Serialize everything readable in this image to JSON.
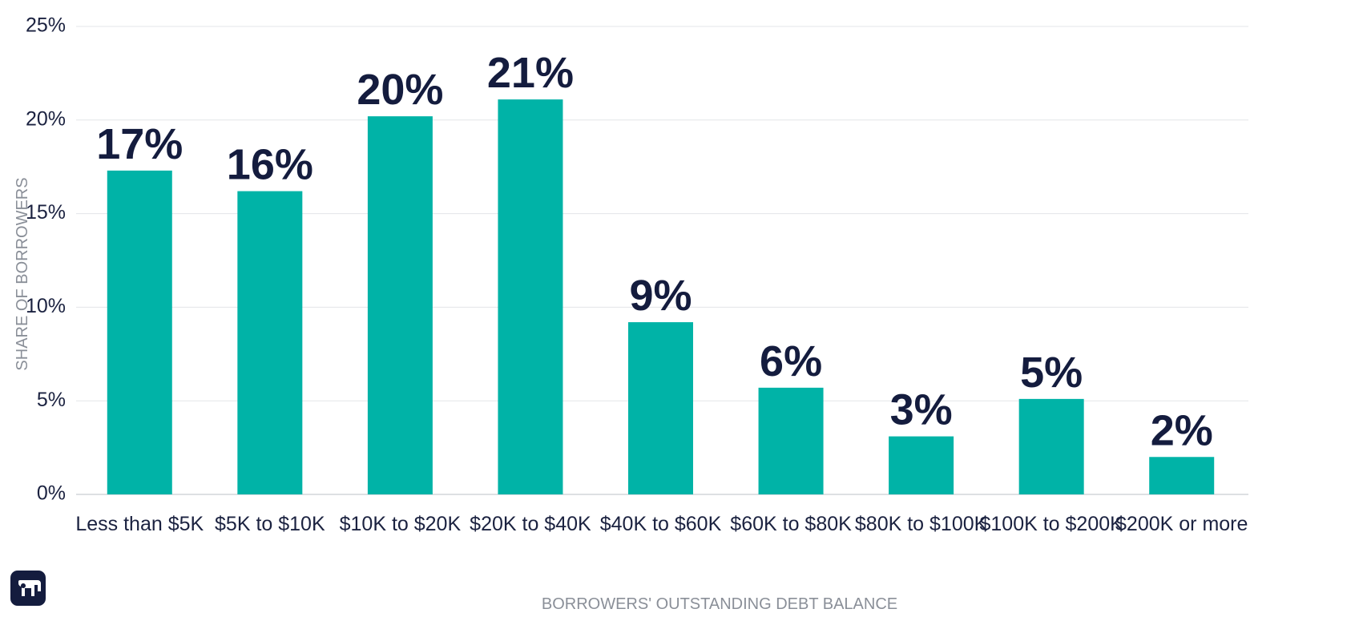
{
  "chart_data": {
    "type": "bar",
    "categories": [
      "Less than $5K",
      "$5K to $10K",
      "$10K to $20K",
      "$20K to $40K",
      "$40K to $60K",
      "$60K to $80K",
      "$80K to $100K",
      "$100K to $200K",
      "$200K or more"
    ],
    "values": [
      17.3,
      16.2,
      20.2,
      21.1,
      9.2,
      5.7,
      3.1,
      5.1,
      2.0
    ],
    "data_labels": [
      "17%",
      "16%",
      "20%",
      "21%",
      "9%",
      "6%",
      "3%",
      "5%",
      "2%"
    ],
    "title": "",
    "xlabel": "BORROWERS' OUTSTANDING DEBT BALANCE",
    "ylabel": "SHARE OF BORROWERS",
    "ylim": [
      0,
      25
    ],
    "yticks": [
      0,
      5,
      10,
      15,
      20,
      25
    ],
    "ytick_labels": [
      "0%",
      "5%",
      "10%",
      "15%",
      "20%",
      "25%"
    ],
    "grid": true,
    "legend": "none",
    "bar_color": "#00b3a7",
    "label_color": "#141c3e"
  },
  "logo": {
    "icon": "elephant-icon",
    "color": "#141c3e"
  }
}
